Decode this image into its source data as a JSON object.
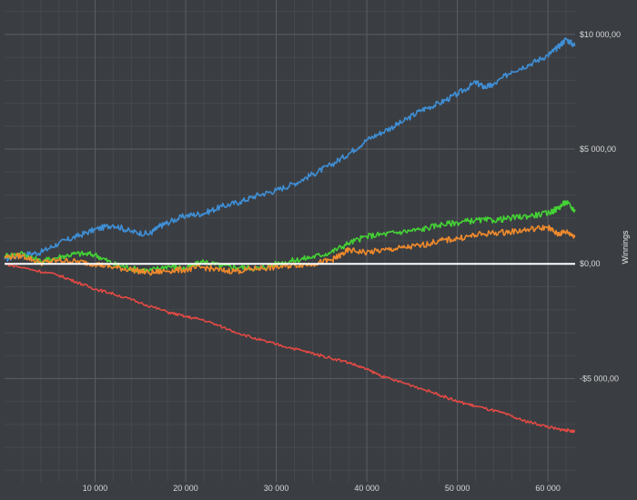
{
  "chart_data": {
    "type": "line",
    "title": "",
    "xlabel": "",
    "ylabel": "Winnings",
    "xlim": [
      0,
      63000
    ],
    "ylim": [
      -9500,
      11500
    ],
    "x_ticks": [
      10000,
      20000,
      30000,
      40000,
      50000,
      60000
    ],
    "x_tick_labels": [
      "10 000",
      "20 000",
      "30 000",
      "40 000",
      "50 000",
      "60 000"
    ],
    "y_ticks": [
      10000,
      5000,
      0,
      -5000
    ],
    "y_tick_labels": [
      "$10 000,00",
      "$5 000,00",
      "$0,00",
      "-$5 000,00"
    ],
    "grid": true,
    "background": "#3a3d42",
    "zero_line_color": "#ffffff",
    "series": [
      {
        "color": "#3f8fd6",
        "x": [
          0,
          2000,
          4000,
          6000,
          8000,
          10000,
          12000,
          14000,
          16000,
          17000,
          18000,
          20000,
          22000,
          24000,
          26000,
          28000,
          30000,
          32000,
          34000,
          36000,
          38000,
          40000,
          42000,
          44000,
          46000,
          48000,
          50000,
          52000,
          53000,
          54000,
          56000,
          58000,
          60000,
          61000,
          62000,
          63000
        ],
        "values": [
          200,
          400,
          500,
          900,
          1200,
          1500,
          1700,
          1400,
          1300,
          1600,
          1800,
          2100,
          2200,
          2500,
          2700,
          3000,
          3200,
          3500,
          3900,
          4300,
          4800,
          5400,
          5800,
          6200,
          6700,
          7000,
          7400,
          7900,
          7700,
          7800,
          8400,
          8700,
          9100,
          9400,
          9800,
          9500
        ]
      },
      {
        "color": "#44d235",
        "x": [
          0,
          2000,
          4000,
          6000,
          8000,
          10000,
          12000,
          14000,
          16000,
          18000,
          20000,
          22000,
          24000,
          26000,
          28000,
          30000,
          32000,
          34000,
          36000,
          38000,
          40000,
          42000,
          44000,
          46000,
          48000,
          50000,
          52000,
          54000,
          56000,
          58000,
          60000,
          61000,
          62000,
          63000
        ],
        "values": [
          350,
          450,
          100,
          300,
          450,
          400,
          0,
          -200,
          -300,
          -100,
          -200,
          100,
          -100,
          -150,
          -200,
          0,
          150,
          300,
          500,
          900,
          1200,
          1300,
          1400,
          1500,
          1700,
          1800,
          1900,
          1900,
          2000,
          2100,
          2200,
          2400,
          2700,
          2300
        ]
      },
      {
        "color": "#f08a2c",
        "x": [
          0,
          2000,
          4000,
          6000,
          8000,
          10000,
          12000,
          14000,
          16000,
          18000,
          20000,
          22000,
          24000,
          26000,
          28000,
          30000,
          32000,
          34000,
          36000,
          37000,
          38000,
          40000,
          42000,
          44000,
          46000,
          48000,
          50000,
          52000,
          54000,
          56000,
          58000,
          60000,
          61000,
          62000,
          63000
        ],
        "values": [
          300,
          350,
          50,
          150,
          100,
          0,
          -150,
          -250,
          -400,
          -300,
          -250,
          -150,
          -300,
          -300,
          -200,
          -150,
          -50,
          0,
          150,
          350,
          600,
          500,
          600,
          700,
          800,
          1000,
          1100,
          1250,
          1350,
          1400,
          1500,
          1600,
          1300,
          1400,
          1200
        ]
      },
      {
        "color": "#e34a44",
        "x": [
          0,
          3000,
          6000,
          8000,
          10000,
          12000,
          15000,
          18000,
          20000,
          22000,
          25000,
          28000,
          30000,
          33000,
          35000,
          38000,
          40000,
          42000,
          45000,
          48000,
          50000,
          52000,
          55000,
          57000,
          59000,
          61000,
          62000,
          63000
        ],
        "values": [
          0,
          -250,
          -500,
          -800,
          -1100,
          -1300,
          -1700,
          -2100,
          -2300,
          -2450,
          -2900,
          -3300,
          -3500,
          -3800,
          -4000,
          -4300,
          -4600,
          -4950,
          -5300,
          -5700,
          -6000,
          -6200,
          -6500,
          -6800,
          -7000,
          -7200,
          -7250,
          -7300
        ]
      }
    ]
  }
}
